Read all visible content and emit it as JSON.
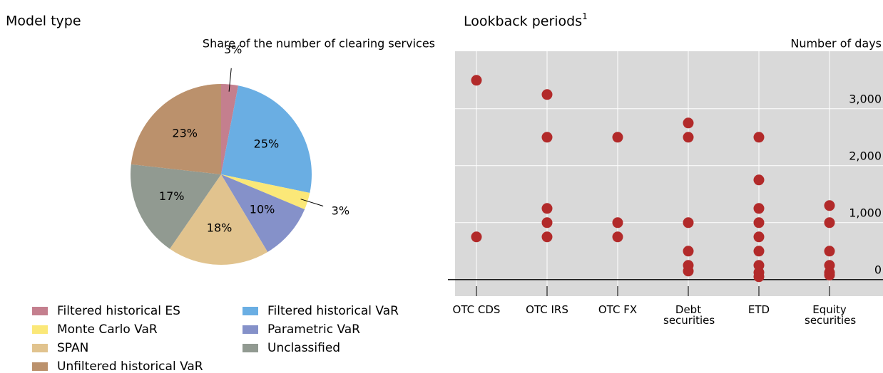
{
  "chart_data": [
    {
      "type": "pie",
      "title": "Model type",
      "subtitle": "Share of the number of clearing services",
      "categories": [
        "Filtered historical ES",
        "Filtered historical VaR",
        "Monte Carlo VaR",
        "Parametric VaR",
        "SPAN",
        "Unclassified",
        "Unfiltered historical VaR"
      ],
      "values": [
        3,
        25,
        3,
        10,
        18,
        17,
        23
      ],
      "value_labels": [
        "3%",
        "25%",
        "3%",
        "10%",
        "18%",
        "17%",
        "23%"
      ],
      "colors": [
        "#c47f8e",
        "#6aaee3",
        "#fbe878",
        "#8591c9",
        "#e1c38e",
        "#919a91",
        "#bb916c"
      ]
    },
    {
      "type": "strip",
      "title": "Lookback periods",
      "title_footnote": "1",
      "ylabel": "Number of days",
      "categories": [
        "OTC CDS",
        "OTC IRS",
        "OTC FX",
        "Debt securities",
        "ETD",
        "Equity securities"
      ],
      "values": [
        [
          3500,
          750
        ],
        [
          3250,
          2500,
          1250,
          1000,
          750
        ],
        [
          2500,
          1000,
          750
        ],
        [
          2750,
          2500,
          1000,
          500,
          250,
          150
        ],
        [
          2500,
          1750,
          1250,
          1000,
          750,
          500,
          250,
          125,
          50
        ],
        [
          1300,
          1000,
          500,
          250,
          125,
          80
        ]
      ],
      "color": "#b22a2a",
      "ylim": [
        -290,
        4010
      ],
      "yticks": [
        0,
        {
          "value": 1000,
          "label": "1,000"
        },
        {
          "value": 2000,
          "label": "2,000"
        },
        {
          "value": 3000,
          "label": "3,000"
        }
      ],
      "grid": true
    }
  ]
}
